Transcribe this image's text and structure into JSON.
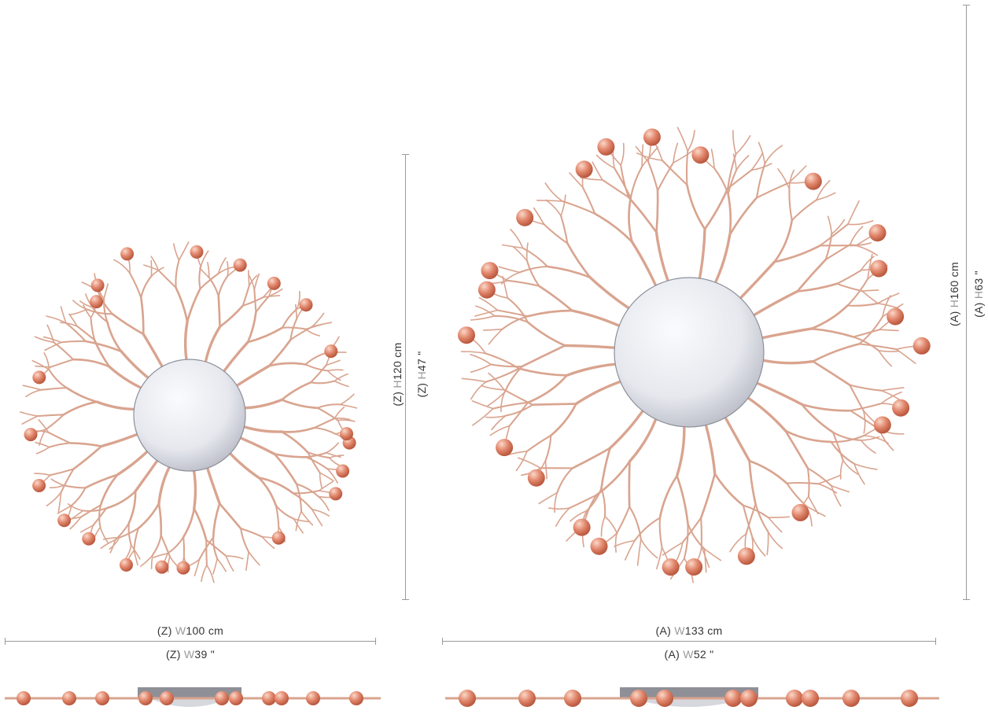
{
  "small": {
    "width_cm": {
      "prefix": "(Z) ",
      "letter": "W",
      "value": "100 cm"
    },
    "width_in": {
      "prefix": "(Z) ",
      "letter": "W",
      "value": "39 \""
    },
    "height_cm": {
      "prefix": "(Z) ",
      "letter": "H",
      "value": "120 cm"
    },
    "height_in": {
      "prefix": "(Z) ",
      "letter": "H",
      "value": "47 \""
    }
  },
  "large": {
    "width_cm": {
      "prefix": "(A) ",
      "letter": "W",
      "value": "133 cm"
    },
    "width_in": {
      "prefix": "(A) ",
      "letter": "W",
      "value": "52 \""
    },
    "height_cm": {
      "prefix": "(A) ",
      "letter": "H",
      "value": "160 cm"
    },
    "height_in": {
      "prefix": "(A) ",
      "letter": "H",
      "value": "63 \""
    }
  },
  "colors": {
    "branch": "#d9a48f",
    "bead": "#e0846a",
    "globe": "#e6e8ee",
    "dimension_line": "#9a9a9a"
  }
}
